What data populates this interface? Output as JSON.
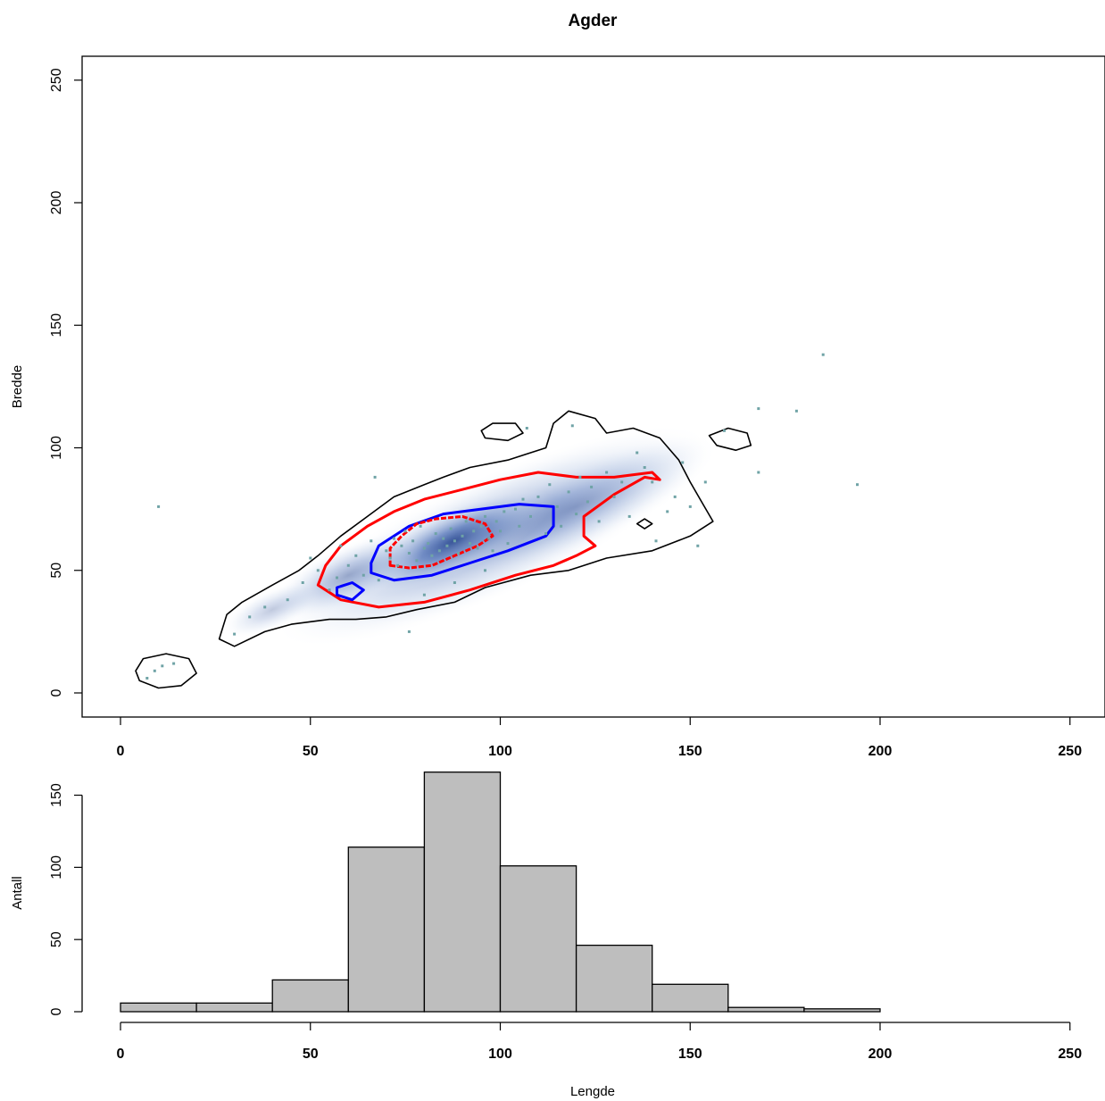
{
  "chart_data": [
    {
      "type": "scatter",
      "title": "Agder",
      "xlabel": "",
      "ylabel": "Bredde",
      "xlim": [
        -10,
        260
      ],
      "ylim": [
        -10,
        260
      ],
      "xticks": [
        0,
        50,
        100,
        150,
        200,
        250
      ],
      "yticks": [
        0,
        50,
        100,
        150,
        200,
        250
      ],
      "density_contours": [
        {
          "level": "outer",
          "color": "#000000",
          "points": [
            [
              30,
              19
            ],
            [
              38,
              25
            ],
            [
              45,
              28
            ],
            [
              55,
              30
            ],
            [
              62,
              30
            ],
            [
              70,
              31
            ],
            [
              78,
              34
            ],
            [
              88,
              37
            ],
            [
              96,
              43
            ],
            [
              108,
              48
            ],
            [
              118,
              50
            ],
            [
              128,
              55
            ],
            [
              140,
              58
            ],
            [
              150,
              64
            ],
            [
              156,
              70
            ],
            [
              153,
              78
            ],
            [
              150,
              86
            ],
            [
              147,
              95
            ],
            [
              142,
              104
            ],
            [
              135,
              108
            ],
            [
              128,
              106
            ],
            [
              125,
              112
            ],
            [
              118,
              115
            ],
            [
              114,
              110
            ],
            [
              112,
              100
            ],
            [
              102,
              95
            ],
            [
              92,
              92
            ],
            [
              85,
              88
            ],
            [
              80,
              85
            ],
            [
              72,
              80
            ],
            [
              65,
              72
            ],
            [
              58,
              64
            ],
            [
              52,
              56
            ],
            [
              47,
              50
            ],
            [
              40,
              44
            ],
            [
              32,
              37
            ],
            [
              28,
              32
            ],
            [
              26,
              22
            ],
            [
              30,
              19
            ]
          ]
        },
        {
          "level": "outer",
          "color": "#000000",
          "points": [
            [
              5,
              5
            ],
            [
              10,
              2
            ],
            [
              16,
              3
            ],
            [
              20,
              8
            ],
            [
              18,
              14
            ],
            [
              12,
              16
            ],
            [
              6,
              14
            ],
            [
              4,
              9
            ],
            [
              5,
              5
            ]
          ]
        },
        {
          "level": "outer",
          "color": "#000000",
          "points": [
            [
              95,
              107
            ],
            [
              98,
              110
            ],
            [
              104,
              110
            ],
            [
              106,
              106
            ],
            [
              102,
              103
            ],
            [
              96,
              104
            ],
            [
              95,
              107
            ]
          ]
        },
        {
          "level": "outer",
          "color": "#000000",
          "points": [
            [
              155,
              105
            ],
            [
              160,
              108
            ],
            [
              165,
              106
            ],
            [
              166,
              101
            ],
            [
              162,
              99
            ],
            [
              157,
              101
            ],
            [
              155,
              105
            ]
          ]
        },
        {
          "level": "outer",
          "color": "#000000",
          "points": [
            [
              136,
              69
            ],
            [
              138,
              71
            ],
            [
              140,
              69
            ],
            [
              138,
              67
            ],
            [
              136,
              69
            ]
          ]
        },
        {
          "level": "middle",
          "color": "#ff0000",
          "points": [
            [
              52,
              44
            ],
            [
              58,
              38
            ],
            [
              68,
              35
            ],
            [
              80,
              37
            ],
            [
              92,
              42
            ],
            [
              104,
              48
            ],
            [
              114,
              52
            ],
            [
              120,
              56
            ],
            [
              125,
              60
            ],
            [
              122,
              64
            ],
            [
              122,
              72
            ],
            [
              130,
              81
            ],
            [
              138,
              88
            ],
            [
              142,
              87
            ],
            [
              140,
              90
            ],
            [
              130,
              88
            ],
            [
              120,
              88
            ],
            [
              110,
              90
            ],
            [
              100,
              87
            ],
            [
              90,
              83
            ],
            [
              80,
              79
            ],
            [
              72,
              74
            ],
            [
              65,
              68
            ],
            [
              58,
              60
            ],
            [
              54,
              52
            ],
            [
              52,
              44
            ]
          ]
        },
        {
          "level": "middle",
          "color": "#0000ff",
          "points": [
            [
              66,
              49
            ],
            [
              72,
              46
            ],
            [
              82,
              48
            ],
            [
              92,
              53
            ],
            [
              102,
              58
            ],
            [
              112,
              64
            ],
            [
              114,
              68
            ],
            [
              114,
              76
            ],
            [
              105,
              77
            ],
            [
              95,
              75
            ],
            [
              85,
              73
            ],
            [
              76,
              68
            ],
            [
              68,
              60
            ],
            [
              66,
              53
            ],
            [
              66,
              49
            ]
          ]
        },
        {
          "level": "middle",
          "color": "#0000ff",
          "points": [
            [
              57,
              40
            ],
            [
              61,
              38
            ],
            [
              64,
              42
            ],
            [
              61,
              45
            ],
            [
              57,
              43
            ],
            [
              57,
              40
            ]
          ]
        },
        {
          "level": "inner",
          "color": "#ff0000",
          "points": [
            [
              71,
              52
            ],
            [
              76,
              51
            ],
            [
              82,
              52
            ],
            [
              88,
              56
            ],
            [
              94,
              60
            ],
            [
              98,
              64
            ],
            [
              96,
              69
            ],
            [
              90,
              72
            ],
            [
              83,
              71
            ],
            [
              78,
              69
            ],
            [
              74,
              64
            ],
            [
              71,
              59
            ],
            [
              71,
              52
            ]
          ]
        }
      ],
      "points": [
        [
          7,
          6
        ],
        [
          9,
          9
        ],
        [
          11,
          11
        ],
        [
          14,
          12
        ],
        [
          10,
          76
        ],
        [
          30,
          24
        ],
        [
          34,
          31
        ],
        [
          38,
          35
        ],
        [
          44,
          38
        ],
        [
          48,
          45
        ],
        [
          50,
          55
        ],
        [
          52,
          50
        ],
        [
          55,
          42
        ],
        [
          57,
          47
        ],
        [
          58,
          60
        ],
        [
          60,
          52
        ],
        [
          62,
          56
        ],
        [
          64,
          48
        ],
        [
          66,
          62
        ],
        [
          67,
          88
        ],
        [
          68,
          46
        ],
        [
          70,
          58
        ],
        [
          71,
          55
        ],
        [
          72,
          63
        ],
        [
          73,
          52
        ],
        [
          74,
          60
        ],
        [
          75,
          66
        ],
        [
          76,
          57
        ],
        [
          77,
          62
        ],
        [
          78,
          54
        ],
        [
          79,
          68
        ],
        [
          80,
          59
        ],
        [
          81,
          61
        ],
        [
          82,
          56
        ],
        [
          83,
          65
        ],
        [
          84,
          58
        ],
        [
          85,
          63
        ],
        [
          86,
          60
        ],
        [
          87,
          67
        ],
        [
          88,
          62
        ],
        [
          89,
          57
        ],
        [
          90,
          64
        ],
        [
          91,
          70
        ],
        [
          92,
          61
        ],
        [
          93,
          66
        ],
        [
          94,
          59
        ],
        [
          95,
          68
        ],
        [
          96,
          72
        ],
        [
          97,
          63
        ],
        [
          98,
          58
        ],
        [
          99,
          70
        ],
        [
          100,
          66
        ],
        [
          101,
          74
        ],
        [
          102,
          61
        ],
        [
          104,
          75
        ],
        [
          105,
          68
        ],
        [
          106,
          79
        ],
        [
          108,
          72
        ],
        [
          110,
          80
        ],
        [
          112,
          65
        ],
        [
          113,
          85
        ],
        [
          115,
          76
        ],
        [
          116,
          68
        ],
        [
          118,
          82
        ],
        [
          120,
          73
        ],
        [
          121,
          88
        ],
        [
          123,
          78
        ],
        [
          124,
          84
        ],
        [
          126,
          70
        ],
        [
          128,
          90
        ],
        [
          130,
          80
        ],
        [
          132,
          86
        ],
        [
          134,
          72
        ],
        [
          136,
          98
        ],
        [
          138,
          92
        ],
        [
          140,
          86
        ],
        [
          141,
          62
        ],
        [
          144,
          74
        ],
        [
          146,
          80
        ],
        [
          148,
          94
        ],
        [
          150,
          76
        ],
        [
          152,
          60
        ],
        [
          154,
          86
        ],
        [
          159,
          107
        ],
        [
          168,
          116
        ],
        [
          168,
          90
        ],
        [
          178,
          115
        ],
        [
          185,
          138
        ],
        [
          194,
          85
        ],
        [
          76,
          25
        ],
        [
          80,
          40
        ],
        [
          88,
          45
        ],
        [
          96,
          50
        ],
        [
          107,
          108
        ],
        [
          119,
          109
        ]
      ]
    },
    {
      "type": "bar",
      "title": "",
      "xlabel": "Lengde",
      "ylabel": "Antall",
      "xlim": [
        -10,
        260
      ],
      "ylim": [
        0,
        170
      ],
      "xticks": [
        0,
        50,
        100,
        150,
        200,
        250
      ],
      "yticks": [
        0,
        50,
        100,
        150
      ],
      "bins": [
        [
          0,
          20
        ],
        [
          20,
          40
        ],
        [
          40,
          60
        ],
        [
          60,
          80
        ],
        [
          80,
          100
        ],
        [
          100,
          120
        ],
        [
          120,
          140
        ],
        [
          140,
          160
        ],
        [
          160,
          180
        ],
        [
          180,
          200
        ]
      ],
      "values": [
        6,
        6,
        22,
        114,
        166,
        101,
        46,
        19,
        3,
        2
      ],
      "bar_color": "#bebebe"
    }
  ]
}
